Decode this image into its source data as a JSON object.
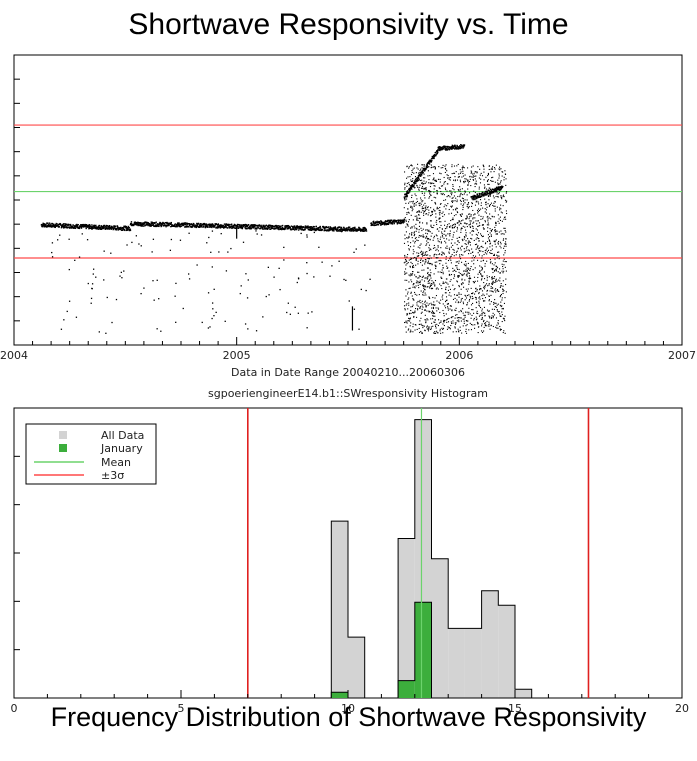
{
  "top_title": "Shortwave Responsivity vs. Time",
  "bottom_title": "Frequency Distribution of Shortwave Responsivity",
  "chart_data": [
    {
      "type": "scatter",
      "title": "",
      "xlabel": "Data in Date Range 20040210...20060306",
      "ylabel": "",
      "x_tick_labels": [
        "2004",
        "2005",
        "2006",
        "2007"
      ],
      "x_tick_values": [
        2004.0,
        2005.0,
        2006.0,
        2007.0
      ],
      "xlim": [
        2004.0,
        2007.0
      ],
      "ylim": [
        0,
        24
      ],
      "reference_lines": [
        {
          "kind": "upper_3sigma",
          "y": 18.2,
          "color": "#ff4a4a"
        },
        {
          "kind": "mean",
          "y": 12.7,
          "color": "#6cd36c"
        },
        {
          "kind": "lower_3sigma",
          "y": 7.2,
          "color": "#ff4a4a"
        }
      ],
      "trend_segments": [
        {
          "x": [
            2004.12,
            2004.52
          ],
          "y": [
            10.0,
            9.7
          ]
        },
        {
          "x": [
            2004.52,
            2005.58
          ],
          "y": [
            10.1,
            9.6
          ]
        },
        {
          "x": [
            2005.6,
            2005.75
          ],
          "y": [
            10.1,
            10.3
          ]
        },
        {
          "x": [
            2005.75,
            2005.9
          ],
          "y": [
            12.3,
            16.1
          ]
        },
        {
          "x": [
            2005.9,
            2006.02
          ],
          "y": [
            16.3,
            16.5
          ]
        },
        {
          "x": [
            2006.05,
            2006.19
          ],
          "y": [
            12.2,
            13.1
          ]
        }
      ],
      "grid": false
    },
    {
      "type": "histogram",
      "title": "sgpoeriengineerE14.b1::SWresponsivity Histogram",
      "xlabel": "",
      "ylabel": "",
      "xlim": [
        0,
        20
      ],
      "x_ticks": [
        0,
        5,
        10,
        15,
        20
      ],
      "ylim": [
        0,
        100
      ],
      "bin_width": 0.5,
      "bins_start": [
        9.5,
        10.0,
        10.5,
        11.0,
        11.5,
        12.0,
        12.5,
        13.0,
        13.5,
        14.0,
        14.5,
        15.0
      ],
      "series": [
        {
          "name": "All Data",
          "color": "#d3d3d3",
          "values": [
            61,
            21,
            0,
            0,
            55,
            96,
            48,
            24,
            24,
            37,
            32,
            3
          ]
        },
        {
          "name": "January",
          "color": "#3cae3c",
          "values": [
            2,
            0,
            0,
            0,
            6,
            33,
            0,
            0,
            0,
            0,
            0,
            0
          ]
        }
      ],
      "mean": 12.2,
      "sigma_lines": [
        7.0,
        17.2
      ],
      "legend": {
        "position": "top-left",
        "entries": [
          {
            "label": "All Data",
            "symbol": "gray-square-icon"
          },
          {
            "label": "January",
            "symbol": "green-square-icon"
          },
          {
            "label": "Mean",
            "symbol": "green-line-icon"
          },
          {
            "label": "±3σ",
            "symbol": "red-line-icon"
          }
        ]
      }
    }
  ]
}
